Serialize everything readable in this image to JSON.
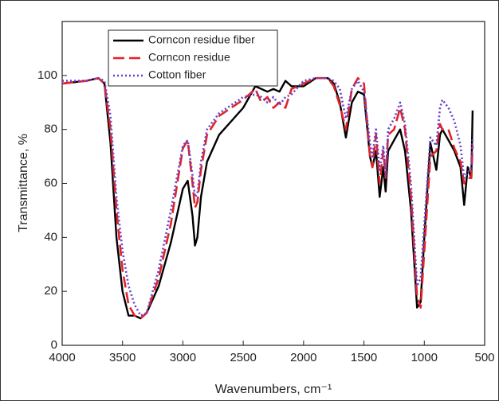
{
  "chart_data": {
    "type": "line",
    "x_label": "Wavenumbers, cm⁻¹",
    "y_label": "Transmittance, %",
    "xlim": [
      4000,
      500
    ],
    "xticks": [
      4000,
      3500,
      3000,
      2500,
      2000,
      1500,
      1000,
      500
    ],
    "ylim": [
      0,
      120
    ],
    "yticks": [
      0,
      20,
      40,
      60,
      80,
      100
    ],
    "legend": "upper left",
    "x": [
      4000,
      3800,
      3700,
      3650,
      3600,
      3550,
      3500,
      3450,
      3400,
      3350,
      3300,
      3200,
      3100,
      3000,
      2960,
      2920,
      2900,
      2880,
      2850,
      2800,
      2700,
      2600,
      2500,
      2400,
      2350,
      2300,
      2250,
      2200,
      2150,
      2100,
      2000,
      1900,
      1800,
      1750,
      1700,
      1650,
      1600,
      1550,
      1500,
      1450,
      1430,
      1400,
      1370,
      1340,
      1320,
      1300,
      1250,
      1200,
      1160,
      1110,
      1060,
      1030,
      1000,
      950,
      900,
      870,
      850,
      800,
      750,
      700,
      670,
      640,
      610,
      600
    ],
    "series": [
      {
        "name": "Corncon residue fiber",
        "color": "#000000",
        "dash": "solid",
        "values": [
          97,
          98,
          99,
          97,
          75,
          40,
          20,
          11,
          11,
          10,
          12,
          22,
          38,
          58,
          61,
          48,
          37,
          40,
          55,
          68,
          78,
          83,
          88,
          96,
          95,
          94,
          95,
          94,
          98,
          96,
          96,
          99,
          99,
          97,
          90,
          77,
          90,
          94,
          93,
          70,
          66,
          72,
          55,
          66,
          57,
          72,
          76,
          80,
          72,
          50,
          14,
          16,
          40,
          75,
          65,
          78,
          80,
          76,
          72,
          66,
          52,
          66,
          62,
          87
        ]
      },
      {
        "name": "Corncon residue",
        "color": "#e0242a",
        "dash": "dashed",
        "values": [
          97,
          98,
          99,
          97,
          80,
          50,
          28,
          15,
          11,
          10,
          12,
          25,
          45,
          73,
          76,
          60,
          51,
          53,
          65,
          78,
          85,
          88,
          91,
          95,
          90,
          92,
          88,
          90,
          88,
          95,
          97,
          99,
          99,
          96,
          89,
          80,
          95,
          99,
          97,
          70,
          66,
          78,
          60,
          72,
          62,
          78,
          80,
          88,
          80,
          55,
          18,
          14,
          35,
          70,
          72,
          82,
          80,
          80,
          73,
          68,
          60,
          62,
          62,
          74
        ]
      },
      {
        "name": "Cotton fiber",
        "color": "#6a3fc8",
        "dash": "dotted",
        "values": [
          98,
          98,
          99,
          98,
          85,
          55,
          35,
          22,
          15,
          11,
          12,
          28,
          50,
          74,
          76,
          63,
          55,
          56,
          68,
          80,
          86,
          89,
          92,
          93,
          92,
          90,
          92,
          89,
          92,
          93,
          98,
          99,
          99,
          98,
          95,
          84,
          95,
          98,
          94,
          75,
          70,
          80,
          65,
          74,
          62,
          80,
          84,
          90,
          82,
          60,
          22,
          25,
          45,
          77,
          74,
          88,
          91,
          88,
          83,
          74,
          62,
          64,
          66,
          77
        ]
      }
    ]
  }
}
